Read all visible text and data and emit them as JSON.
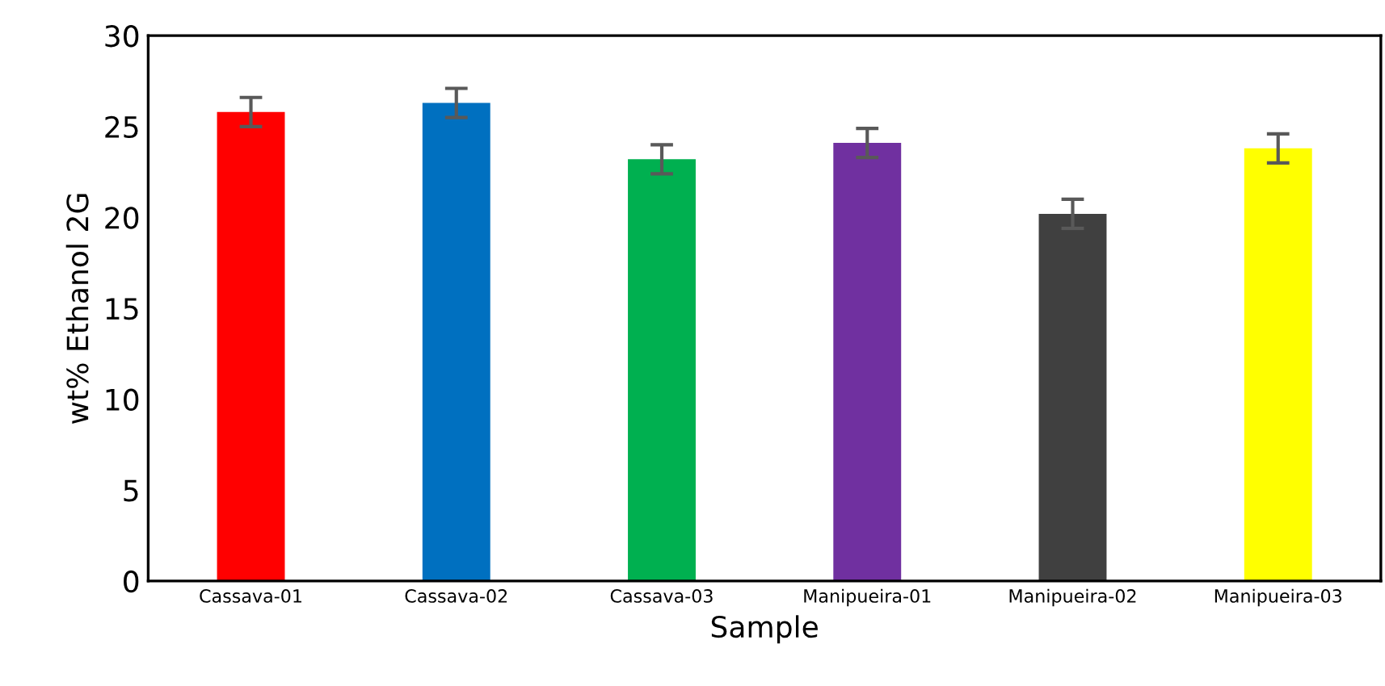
{
  "chart_data": {
    "type": "bar",
    "xlabel": "Sample",
    "ylabel": "wt% Ethanol 2G",
    "categories": [
      "Cassava-01",
      "Cassava-02",
      "Cassava-03",
      "Manipueira-01",
      "Manipueira-02",
      "Manipueira-03"
    ],
    "values": [
      25.8,
      26.3,
      23.2,
      24.1,
      20.2,
      23.8
    ],
    "errors": [
      0.8,
      0.8,
      0.8,
      0.8,
      0.8,
      0.8
    ],
    "colors": [
      "#ff0000",
      "#0070c0",
      "#00b050",
      "#7030a0",
      "#404040",
      "#ffff00"
    ],
    "ylim": [
      0,
      30
    ],
    "yticks": [
      0,
      5,
      10,
      15,
      20,
      25,
      30
    ],
    "grid": false
  }
}
